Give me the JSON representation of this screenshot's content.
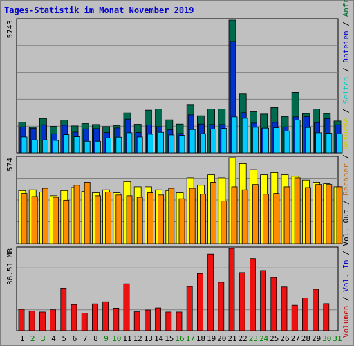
{
  "title": "Tages-Statistik im Monat November 2019",
  "right_legend": [
    {
      "text": "Volumen",
      "color": "#cc0000"
    },
    {
      "text": " / ",
      "color": "#000000"
    },
    {
      "text": "Vol. In",
      "color": "#0000cc"
    },
    {
      "text": " / ",
      "color": "#000000"
    },
    {
      "text": "Vol. Out",
      "color": "#000000"
    },
    {
      "text": " / ",
      "color": "#000000"
    },
    {
      "text": "Rechner",
      "color": "#cc6600"
    },
    {
      "text": " / ",
      "color": "#000000"
    },
    {
      "text": "Besuche",
      "color": "#cccc00"
    },
    {
      "text": " / ",
      "color": "#000000"
    },
    {
      "text": "Seiten",
      "color": "#00cccc"
    },
    {
      "text": " / ",
      "color": "#000000"
    },
    {
      "text": "Dateien",
      "color": "#0000cc"
    },
    {
      "text": " / ",
      "color": "#000000"
    },
    {
      "text": "Anfragen",
      "color": "#006633"
    }
  ],
  "chart_data": [
    {
      "type": "bar",
      "ymax_label": "5743",
      "ylim": [
        0,
        5743
      ],
      "categories": [
        "1",
        "2",
        "3",
        "4",
        "5",
        "6",
        "7",
        "8",
        "9",
        "10",
        "11",
        "12",
        "13",
        "14",
        "15",
        "16",
        "17",
        "18",
        "19",
        "20",
        "21",
        "22",
        "23",
        "24",
        "25",
        "26",
        "27",
        "28",
        "29",
        "30",
        "31"
      ],
      "weekend_days": [
        "2",
        "3",
        "9",
        "10",
        "16",
        "17",
        "23",
        "24",
        "30",
        "31"
      ],
      "series": [
        {
          "name": "Anfragen",
          "color": "#006a4e",
          "values": [
            1330,
            1110,
            1490,
            1150,
            1420,
            1170,
            1270,
            1230,
            1140,
            1180,
            1730,
            1240,
            1850,
            1900,
            1430,
            1250,
            2070,
            1610,
            1900,
            1900,
            5743,
            2550,
            1780,
            1680,
            1960,
            1570,
            2620,
            1700,
            1900,
            1700,
            1380
          ]
        },
        {
          "name": "Dateien",
          "color": "#0033cc",
          "values": [
            1130,
            1060,
            1220,
            830,
            1200,
            900,
            1040,
            1050,
            880,
            1080,
            1460,
            880,
            1210,
            1140,
            1000,
            840,
            1650,
            1250,
            1230,
            1230,
            4820,
            1740,
            1290,
            1070,
            1320,
            1130,
            1560,
            1570,
            1310,
            1480,
            1220
          ]
        },
        {
          "name": "Seiten",
          "color": "#00ccff",
          "values": [
            690,
            560,
            560,
            540,
            790,
            700,
            500,
            500,
            640,
            680,
            870,
            690,
            810,
            890,
            780,
            760,
            1010,
            830,
            1030,
            1060,
            1560,
            1500,
            1110,
            1070,
            1090,
            940,
            1420,
            1100,
            870,
            850,
            820
          ]
        }
      ]
    },
    {
      "type": "bar",
      "ymax_label": "574",
      "ylim": [
        0,
        574
      ],
      "categories": [
        "1",
        "2",
        "3",
        "4",
        "5",
        "6",
        "7",
        "8",
        "9",
        "10",
        "11",
        "12",
        "13",
        "14",
        "15",
        "16",
        "17",
        "18",
        "19",
        "20",
        "21",
        "22",
        "23",
        "24",
        "25",
        "26",
        "27",
        "28",
        "29",
        "30",
        "31"
      ],
      "series": [
        {
          "name": "Besuche",
          "color": "#ffff00",
          "values": [
            355,
            360,
            345,
            320,
            355,
            375,
            350,
            340,
            360,
            340,
            415,
            380,
            380,
            360,
            355,
            340,
            440,
            390,
            460,
            440,
            574,
            535,
            495,
            460,
            475,
            460,
            450,
            425,
            410,
            400,
            380
          ]
        },
        {
          "name": "Rechner",
          "color": "#ff8c00",
          "values": [
            335,
            315,
            370,
            310,
            290,
            390,
            410,
            320,
            345,
            325,
            320,
            310,
            340,
            325,
            370,
            300,
            370,
            330,
            410,
            285,
            380,
            360,
            395,
            330,
            335,
            380,
            440,
            375,
            395,
            395,
            380
          ]
        }
      ]
    },
    {
      "type": "bar",
      "ymax_label": "36.51 MB",
      "ylim": [
        0,
        36.51
      ],
      "categories": [
        "1",
        "2",
        "3",
        "4",
        "5",
        "6",
        "7",
        "8",
        "9",
        "10",
        "11",
        "12",
        "13",
        "14",
        "15",
        "16",
        "17",
        "18",
        "19",
        "20",
        "21",
        "22",
        "23",
        "24",
        "25",
        "26",
        "27",
        "28",
        "29",
        "30",
        "31"
      ],
      "series": [
        {
          "name": "Volumen",
          "color": "#ee1111",
          "values": [
            9.5,
            8.7,
            8.3,
            9.3,
            18.9,
            11.6,
            7.8,
            11.9,
            12.8,
            10.0,
            20.8,
            8.4,
            9.2,
            10.1,
            8.3,
            8.3,
            19.6,
            25.4,
            34.0,
            21.5,
            36.51,
            25.8,
            32.0,
            26.7,
            23.6,
            19.4,
            11.3,
            14.6,
            18.4,
            12.0,
            null
          ]
        }
      ]
    }
  ]
}
